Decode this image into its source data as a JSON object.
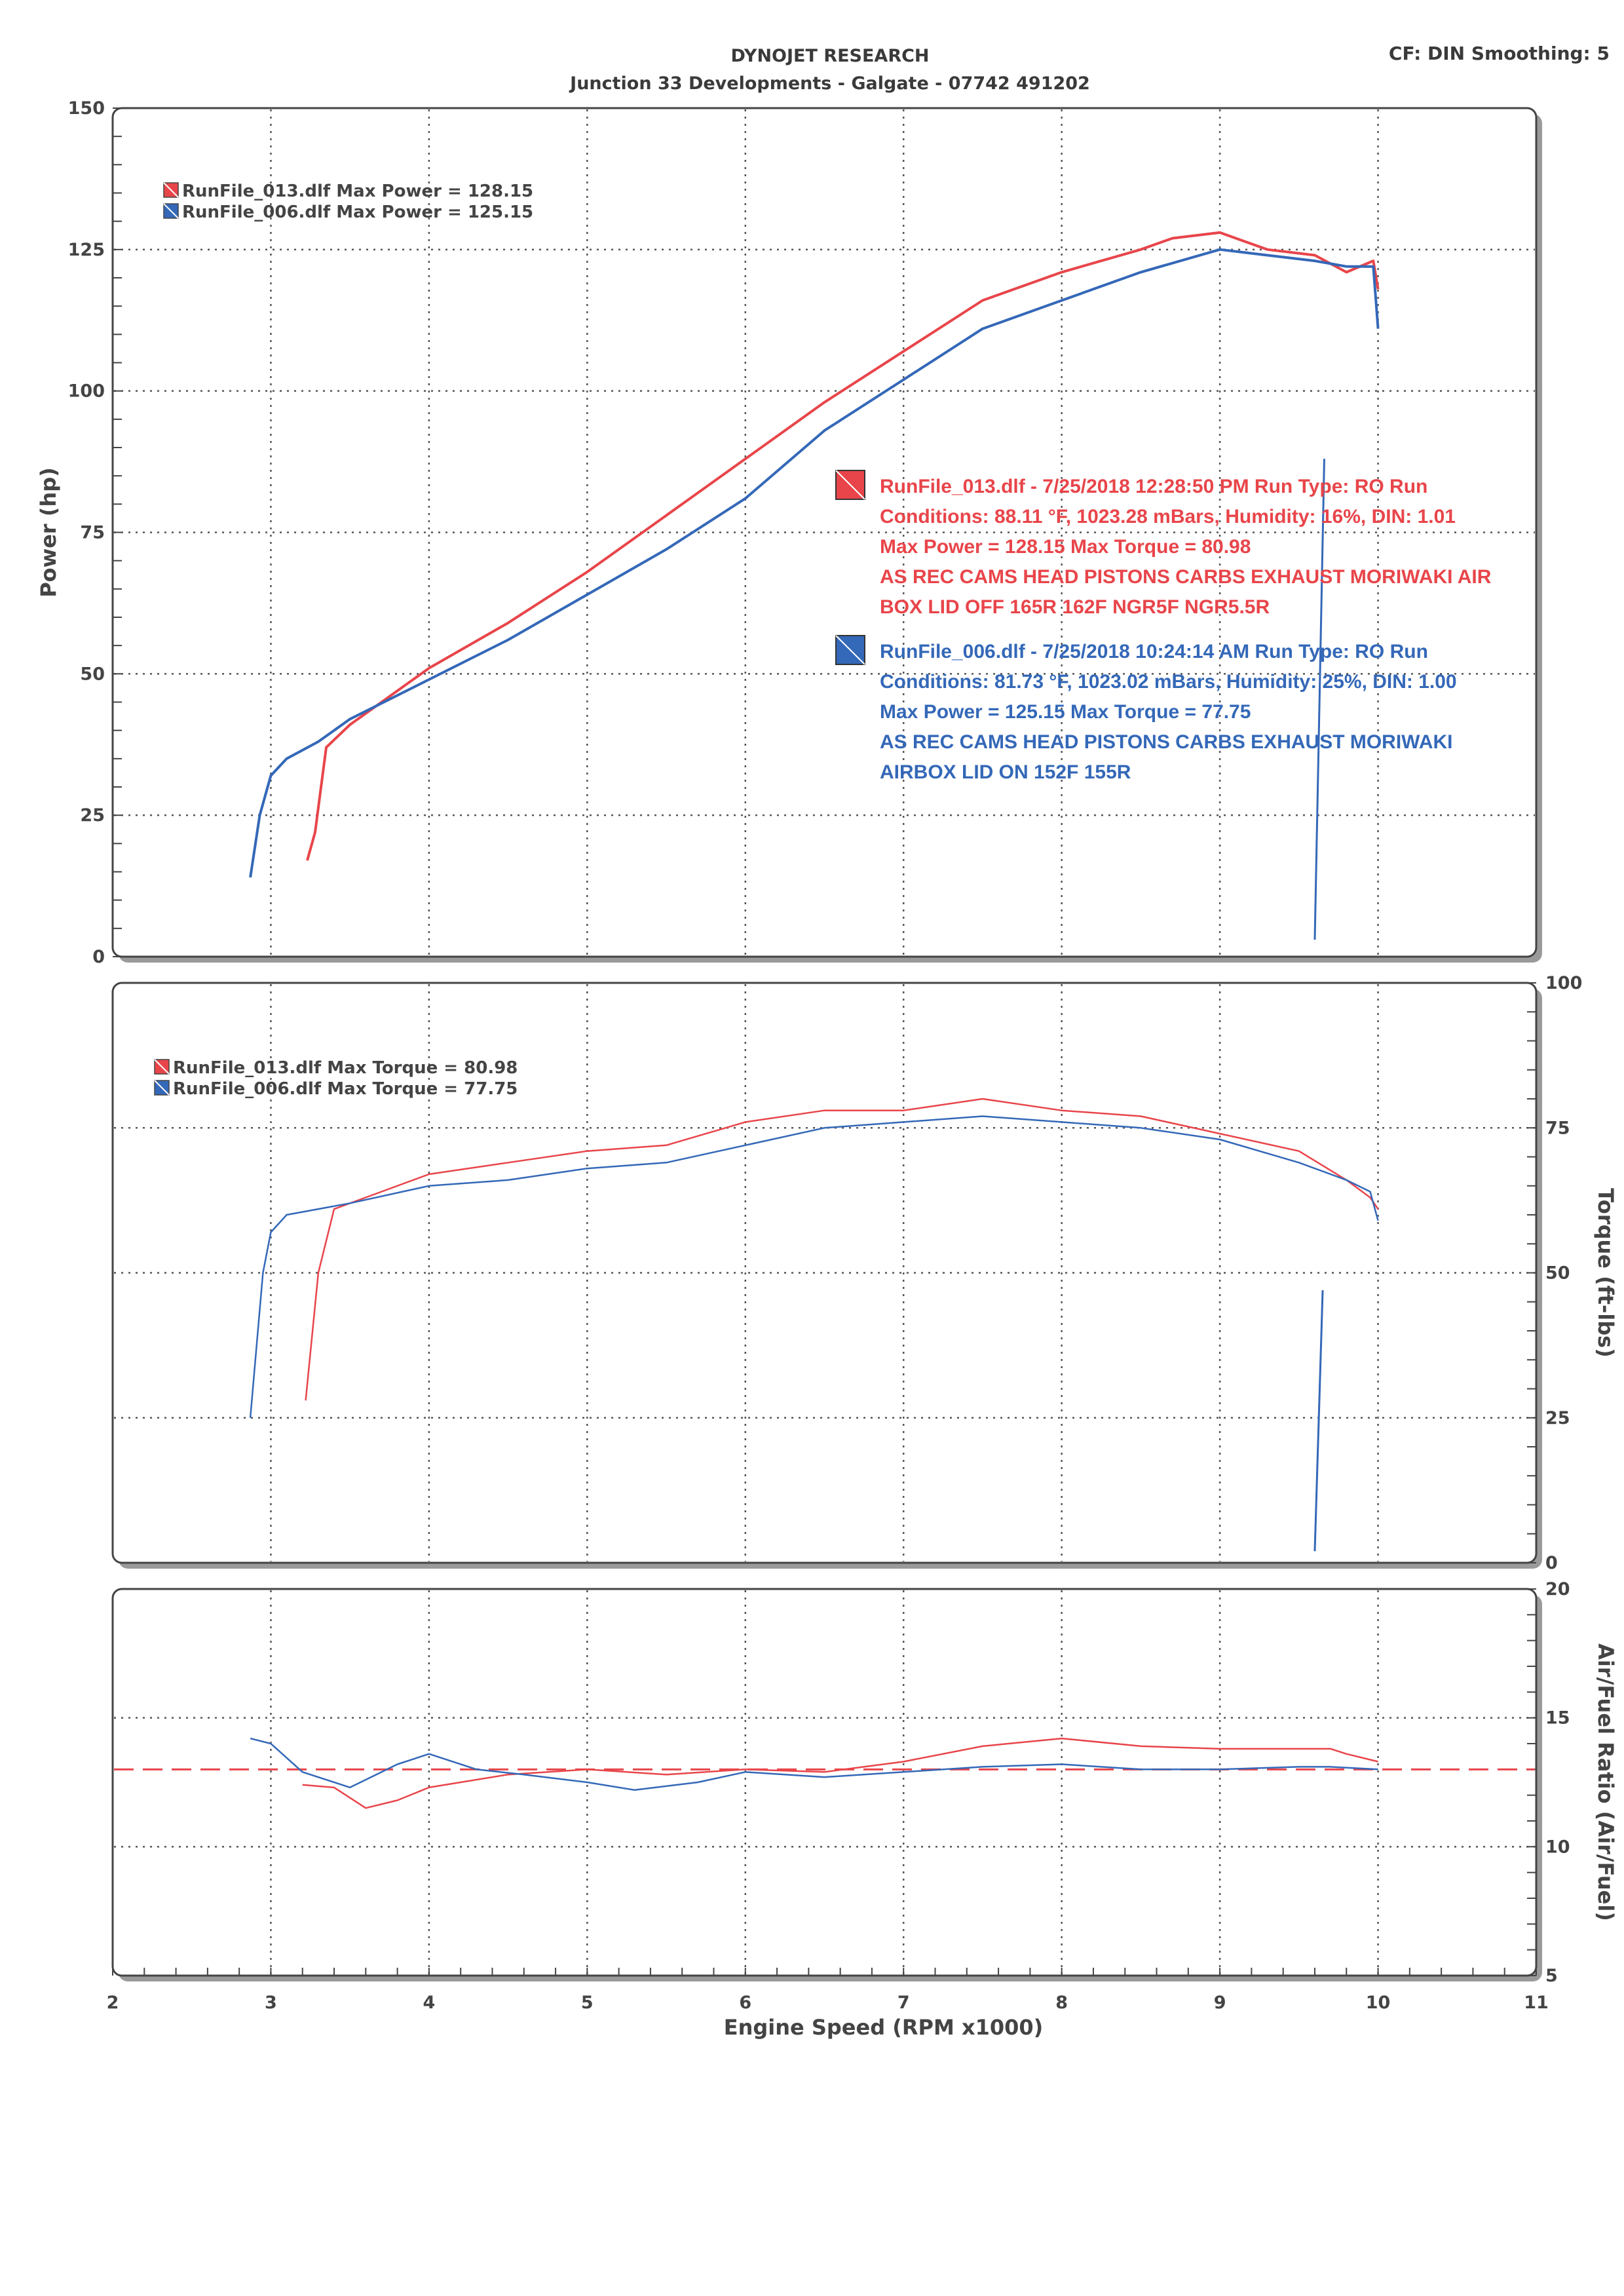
{
  "header": {
    "title": "DYNOJET RESEARCH",
    "subtitle": "Junction 33 Developments - Galgate - 07742 491202",
    "cf": "CF: DIN  Smoothing: 5"
  },
  "colors": {
    "run013": "#e8454a",
    "run006": "#3468b8",
    "grid": "#555555"
  },
  "chart_data": [
    {
      "type": "line",
      "name": "power",
      "ylabel": "Power (hp)",
      "xlim": [
        2,
        11
      ],
      "ylim": [
        0,
        150
      ],
      "yticks": [
        0,
        25,
        50,
        75,
        100,
        125,
        150
      ],
      "grid": true,
      "legend": [
        "RunFile_013.dlf Max Power = 128.15",
        "RunFile_006.dlf Max Power = 125.15"
      ],
      "series": [
        {
          "run": "013",
          "x": [
            3.23,
            3.28,
            3.35,
            3.5,
            3.7,
            4.0,
            4.5,
            5.0,
            5.5,
            6.0,
            6.5,
            7.0,
            7.5,
            8.0,
            8.5,
            8.7,
            9.0,
            9.3,
            9.6,
            9.8,
            9.97,
            10.0
          ],
          "y": [
            17,
            22,
            37,
            41,
            45,
            51,
            59,
            68,
            78,
            88,
            98,
            107,
            116,
            121,
            125,
            127,
            128,
            125,
            124,
            121,
            123,
            118
          ]
        },
        {
          "run": "006",
          "x": [
            2.87,
            2.93,
            3.0,
            3.1,
            3.3,
            3.5,
            4.0,
            4.5,
            5.0,
            5.5,
            6.0,
            6.5,
            7.0,
            7.5,
            8.0,
            8.5,
            9.0,
            9.3,
            9.6,
            9.8,
            9.97,
            10.0
          ],
          "y": [
            14,
            25,
            32,
            35,
            38,
            42,
            49,
            56,
            64,
            72,
            81,
            93,
            102,
            111,
            116,
            121,
            125,
            124,
            123,
            122,
            122,
            111
          ]
        }
      ],
      "spike": {
        "run": "006",
        "x": [
          9.6,
          9.66
        ],
        "y": [
          3,
          88
        ]
      }
    },
    {
      "type": "line",
      "name": "torque",
      "ylabel": "Torque (ft-lbs)",
      "xlim": [
        2,
        11
      ],
      "ylim": [
        0,
        100
      ],
      "yticks": [
        0,
        25,
        50,
        75,
        100
      ],
      "grid": true,
      "legend": [
        "RunFile_013.dlf Max Torque = 80.98",
        "RunFile_006.dlf Max Torque = 77.75"
      ],
      "series": [
        {
          "run": "013",
          "x": [
            3.22,
            3.3,
            3.4,
            3.6,
            4.0,
            4.5,
            5.0,
            5.5,
            6.0,
            6.5,
            7.0,
            7.5,
            8.0,
            8.5,
            9.0,
            9.5,
            9.8,
            9.95,
            10.0
          ],
          "y": [
            28,
            50,
            61,
            63,
            67,
            69,
            71,
            72,
            76,
            78,
            78,
            80,
            78,
            77,
            74,
            71,
            66,
            63,
            61
          ]
        },
        {
          "run": "006",
          "x": [
            2.87,
            2.95,
            3.0,
            3.1,
            3.5,
            4.0,
            4.5,
            5.0,
            5.5,
            6.0,
            6.5,
            7.0,
            7.5,
            8.0,
            8.5,
            9.0,
            9.5,
            9.8,
            9.95,
            10.0
          ],
          "y": [
            25,
            50,
            57,
            60,
            62,
            65,
            66,
            68,
            69,
            72,
            75,
            76,
            77,
            76,
            75,
            73,
            69,
            66,
            64,
            59
          ]
        }
      ],
      "spike": {
        "run": "006",
        "x": [
          9.6,
          9.65
        ],
        "y": [
          2,
          47
        ]
      }
    },
    {
      "type": "line",
      "name": "afr",
      "ylabel": "Air/Fuel Ratio (Air/Fuel)",
      "xlabel": "Engine Speed (RPM x1000)",
      "xlim": [
        2,
        11
      ],
      "ylim": [
        5,
        20
      ],
      "yticks": [
        5,
        10,
        15,
        20
      ],
      "xticks": [
        2,
        3,
        4,
        5,
        6,
        7,
        8,
        9,
        10,
        11
      ],
      "grid": true,
      "reference_line": 13.0,
      "series": [
        {
          "run": "013",
          "x": [
            3.2,
            3.4,
            3.6,
            3.8,
            4.0,
            4.5,
            5.0,
            5.5,
            6.0,
            6.5,
            7.0,
            7.5,
            8.0,
            8.5,
            9.0,
            9.5,
            9.7,
            9.8,
            10.0
          ],
          "y": [
            12.4,
            12.3,
            11.5,
            11.8,
            12.3,
            12.8,
            13.0,
            12.8,
            13.0,
            12.9,
            13.3,
            13.9,
            14.2,
            13.9,
            13.8,
            13.8,
            13.8,
            13.6,
            13.3
          ]
        },
        {
          "run": "006",
          "x": [
            2.87,
            3.0,
            3.2,
            3.5,
            3.8,
            4.0,
            4.3,
            4.6,
            5.0,
            5.3,
            5.7,
            6.0,
            6.5,
            7.0,
            7.5,
            8.0,
            8.5,
            9.0,
            9.5,
            9.7,
            10.0
          ],
          "y": [
            14.2,
            14.0,
            12.9,
            12.3,
            13.2,
            13.6,
            13.0,
            12.8,
            12.5,
            12.2,
            12.5,
            12.9,
            12.7,
            12.9,
            13.1,
            13.2,
            13.0,
            13.0,
            13.1,
            13.1,
            13.0
          ]
        }
      ]
    }
  ],
  "annotations": [
    {
      "run": "013",
      "lines": [
        "RunFile_013.dlf - 7/25/2018 12:28:50 PM  Run Type: RO  Run",
        "Conditions: 88.11 °F, 1023.28 mBars,  Humidity:  16%, DIN: 1.01",
        "Max Power = 128.15  Max Torque = 80.98",
        "AS REC CAMS HEAD PISTONS CARBS EXHAUST MORIWAKI AIR",
        "BOX LID OFF 165R 162F NGR5F NGR5.5R"
      ]
    },
    {
      "run": "006",
      "lines": [
        "RunFile_006.dlf - 7/25/2018 10:24:14 AM  Run Type: RO  Run",
        "Conditions: 81.73 °F, 1023.02 mBars,  Humidity:  25%, DIN: 1.00",
        "Max Power = 125.15  Max Torque = 77.75",
        "AS REC CAMS HEAD PISTONS CARBS EXHAUST MORIWAKI",
        "AIRBOX LID ON 152F 155R"
      ]
    }
  ]
}
